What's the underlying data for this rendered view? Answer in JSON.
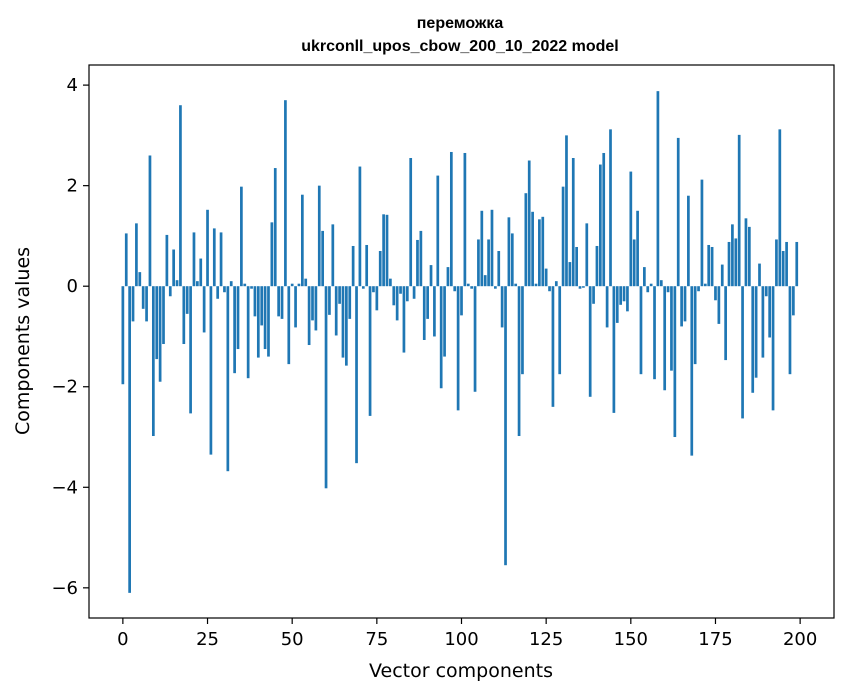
{
  "chart_data": {
    "type": "bar",
    "title": "переможка",
    "subtitle": "ukrconll_upos_cbow_200_10_2022 model",
    "xlabel": "Vector components",
    "ylabel": "Components values",
    "xlim": [
      -10,
      210
    ],
    "ylim": [
      -6.6,
      4.4
    ],
    "xticks": [
      0,
      25,
      50,
      75,
      100,
      125,
      150,
      175,
      200
    ],
    "yticks": [
      -6,
      -4,
      -2,
      0,
      2,
      4
    ],
    "ytick_labels": [
      "−6",
      "−4",
      "−2",
      "0",
      "2",
      "4"
    ],
    "grid": false,
    "bar_color": "#1f77b4",
    "x": [
      0,
      1,
      2,
      3,
      4,
      5,
      6,
      7,
      8,
      9,
      10,
      11,
      12,
      13,
      14,
      15,
      16,
      17,
      18,
      19,
      20,
      21,
      22,
      23,
      24,
      25,
      26,
      27,
      28,
      29,
      30,
      31,
      32,
      33,
      34,
      35,
      36,
      37,
      38,
      39,
      40,
      41,
      42,
      43,
      44,
      45,
      46,
      47,
      48,
      49,
      50,
      51,
      52,
      53,
      54,
      55,
      56,
      57,
      58,
      59,
      60,
      61,
      62,
      63,
      64,
      65,
      66,
      67,
      68,
      69,
      70,
      71,
      72,
      73,
      74,
      75,
      76,
      77,
      78,
      79,
      80,
      81,
      82,
      83,
      84,
      85,
      86,
      87,
      88,
      89,
      90,
      91,
      92,
      93,
      94,
      95,
      96,
      97,
      98,
      99,
      100,
      101,
      102,
      103,
      104,
      105,
      106,
      107,
      108,
      109,
      110,
      111,
      112,
      113,
      114,
      115,
      116,
      117,
      118,
      119,
      120,
      121,
      122,
      123,
      124,
      125,
      126,
      127,
      128,
      129,
      130,
      131,
      132,
      133,
      134,
      135,
      136,
      137,
      138,
      139,
      140,
      141,
      142,
      143,
      144,
      145,
      146,
      147,
      148,
      149,
      150,
      151,
      152,
      153,
      154,
      155,
      156,
      157,
      158,
      159,
      160,
      161,
      162,
      163,
      164,
      165,
      166,
      167,
      168,
      169,
      170,
      171,
      172,
      173,
      174,
      175,
      176,
      177,
      178,
      179,
      180,
      181,
      182,
      183,
      184,
      185,
      186,
      187,
      188,
      189,
      190,
      191,
      192,
      193,
      194,
      195,
      196,
      197,
      198,
      199
    ],
    "values": [
      -1.95,
      1.05,
      -6.1,
      -0.7,
      1.25,
      0.28,
      -0.45,
      -0.7,
      2.6,
      -2.98,
      -1.45,
      -1.9,
      -1.15,
      1.02,
      -0.2,
      0.73,
      0.12,
      3.6,
      -1.15,
      -0.55,
      -2.53,
      1.07,
      0.1,
      0.55,
      -0.92,
      1.52,
      -3.35,
      1.15,
      -0.25,
      1.07,
      -0.12,
      -3.68,
      0.1,
      -1.73,
      -1.25,
      1.98,
      0.05,
      -1.83,
      -0.05,
      -0.6,
      -1.42,
      -0.78,
      -1.25,
      -1.4,
      1.27,
      2.35,
      -0.6,
      -0.65,
      3.7,
      -1.55,
      0.05,
      -0.82,
      0.05,
      1.82,
      0.15,
      -1.17,
      -0.68,
      -0.88,
      2.0,
      1.1,
      -4.02,
      -0.57,
      1.23,
      -0.98,
      -0.35,
      -1.42,
      -1.58,
      -0.65,
      0.8,
      -3.52,
      2.38,
      -0.05,
      0.82,
      -2.58,
      -0.12,
      -0.48,
      0.7,
      1.43,
      1.42,
      0.15,
      -0.38,
      -0.68,
      -0.15,
      -1.32,
      -0.3,
      2.55,
      -0.25,
      0.92,
      1.1,
      -1.07,
      -0.65,
      0.42,
      -1.0,
      2.2,
      -2.03,
      -1.4,
      0.38,
      2.67,
      -0.1,
      -2.47,
      -0.58,
      2.65,
      0.05,
      -0.05,
      -2.1,
      0.93,
      1.5,
      0.22,
      0.93,
      1.52,
      -0.05,
      0.7,
      -0.82,
      -5.55,
      1.37,
      1.05,
      0.05,
      -2.98,
      -1.75,
      1.85,
      2.5,
      1.48,
      0.05,
      1.33,
      1.38,
      0.35,
      -0.1,
      -2.4,
      0.1,
      -1.75,
      1.98,
      3.0,
      0.48,
      2.55,
      0.78,
      -0.05,
      -0.03,
      1.25,
      -2.2,
      -0.35,
      0.8,
      2.42,
      2.65,
      -0.82,
      3.12,
      -2.52,
      -0.73,
      -0.37,
      -0.3,
      -0.5,
      2.28,
      0.93,
      1.5,
      -1.75,
      0.38,
      -0.12,
      0.05,
      -1.85,
      3.88,
      0.12,
      -2.07,
      -0.12,
      -1.68,
      -3.0,
      2.95,
      -0.8,
      -0.7,
      1.8,
      -3.37,
      -1.55,
      -0.1,
      2.12,
      0.05,
      0.82,
      0.78,
      -0.28,
      -0.75,
      0.43,
      -1.47,
      0.88,
      1.23,
      0.95,
      3.01,
      -2.63,
      1.35,
      1.18,
      -2.12,
      -1.82,
      0.45,
      -1.42,
      -0.2,
      -1.02,
      -2.47,
      0.93,
      3.12,
      0.7,
      0.88,
      -1.75,
      -0.58,
      0.88
    ]
  }
}
